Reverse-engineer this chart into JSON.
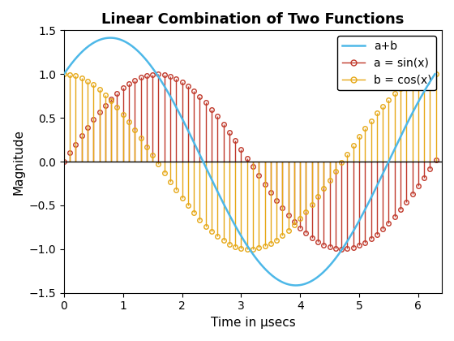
{
  "title": "Linear Combination of Two Functions",
  "xlabel": "Time in μsecs",
  "ylabel": "Magnitude",
  "xlim": [
    0,
    6.4
  ],
  "ylim": [
    -1.5,
    1.5
  ],
  "x_start": 0,
  "x_end": 6.283185307179586,
  "stem_step": 0.1,
  "line_points": 500,
  "color_sum": "#4db8e8",
  "color_sin": "#c0392b",
  "color_cos": "#e6a817",
  "legend_labels": [
    "a+b",
    "a = sin(x)",
    "b = cos(x)"
  ],
  "title_fontsize": 13,
  "label_fontsize": 11,
  "tick_fontsize": 10,
  "background_color": "#ffffff"
}
